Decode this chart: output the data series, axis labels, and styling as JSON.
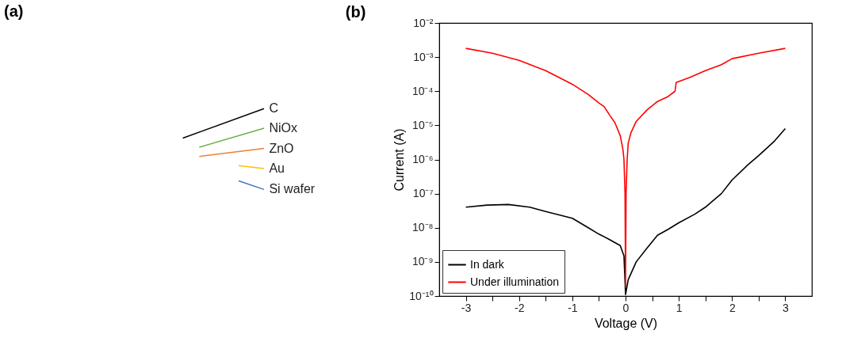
{
  "chart_data": [
    {
      "type": "other",
      "title": "(a)",
      "annotations": [
        "C",
        "NiOx",
        "ZnO",
        "Au",
        "Si wafer"
      ]
    },
    {
      "type": "line",
      "title": "(b)",
      "xlabel": "Voltage (V)",
      "ylabel": "Current (A)",
      "log": "y",
      "grid": false,
      "legend": "bottom left",
      "marker": "none",
      "line_style": "solid",
      "xlim": [
        -3.5,
        3.5
      ],
      "xticks": [
        -3,
        {
          "value": -2.5,
          "label": null
        },
        -2,
        {
          "value": -1.5,
          "label": null
        },
        -1,
        {
          "value": -0.5,
          "label": null
        },
        0,
        {
          "value": 0.5,
          "label": null
        },
        1,
        {
          "value": 1.5,
          "label": null
        },
        2,
        {
          "value": 2.5,
          "label": null
        },
        3
      ],
      "ylim": [
        1e-10,
        0.01
      ],
      "yticks": [
        {
          "value": 1e-10,
          "label": "10⁻¹⁰"
        },
        {
          "value": 1e-09,
          "label": "10⁻⁹"
        },
        {
          "value": 1e-08,
          "label": "10⁻⁸"
        },
        {
          "value": 1e-07,
          "label": "10⁻⁷"
        },
        {
          "value": 1e-06,
          "label": "10⁻⁶"
        },
        {
          "value": 1e-05,
          "label": "10⁻⁵"
        },
        {
          "value": 0.0001,
          "label": "10⁻⁴"
        },
        {
          "value": 0.001,
          "label": "10⁻³"
        },
        {
          "value": 0.01,
          "label": "10⁻²"
        }
      ],
      "series": [
        {
          "name": "In dark",
          "color": "#000000",
          "x": [
            -3,
            -2.6,
            -2.2,
            -1.8,
            -1.5,
            -1,
            -0.7,
            -0.5,
            -0.3,
            -0.1,
            -0.03,
            0,
            0.05,
            0.2,
            0.4,
            0.6,
            0.8,
            1,
            1.3,
            1.5,
            1.8,
            2,
            2.3,
            2.5,
            2.8,
            3
          ],
          "values": [
            4e-08,
            4.6e-08,
            4.8e-08,
            4e-08,
            3e-08,
            1.9e-08,
            1e-08,
            6.5e-09,
            4.5e-09,
            3e-09,
            1.5e-09,
            1.1e-10,
            3e-10,
            1e-09,
            2.5e-09,
            6e-09,
            9e-09,
            1.4e-08,
            2.5e-08,
            4e-08,
            1e-07,
            2.5e-07,
            7e-07,
            1.3e-06,
            3.5e-06,
            8e-06
          ]
        },
        {
          "name": "Under illumination",
          "color": "#ff0000",
          "x": [
            -3,
            -2.5,
            -2,
            -1.5,
            -1,
            -0.7,
            -0.5,
            -0.4,
            -0.3,
            -0.2,
            -0.1,
            -0.05,
            -0.03,
            -0.01,
            0,
            0.01,
            0.03,
            0.05,
            0.1,
            0.2,
            0.4,
            0.6,
            0.8,
            0.93,
            0.95,
            1.2,
            1.5,
            1.8,
            2,
            2.5,
            3
          ],
          "values": [
            0.0018,
            0.0013,
            0.0008,
            0.0004,
            0.00016,
            8e-05,
            4.5e-05,
            3.5e-05,
            2e-05,
            1.2e-05,
            5e-06,
            2e-06,
            1e-06,
            1e-07,
            2e-10,
            1e-07,
            1e-06,
            3e-06,
            6e-06,
            1.3e-05,
            2.8e-05,
            5e-05,
            7e-05,
            0.0001,
            0.00018,
            0.00025,
            0.0004,
            0.0006,
            0.0009,
            0.0013,
            0.0018
          ]
        }
      ]
    }
  ]
}
